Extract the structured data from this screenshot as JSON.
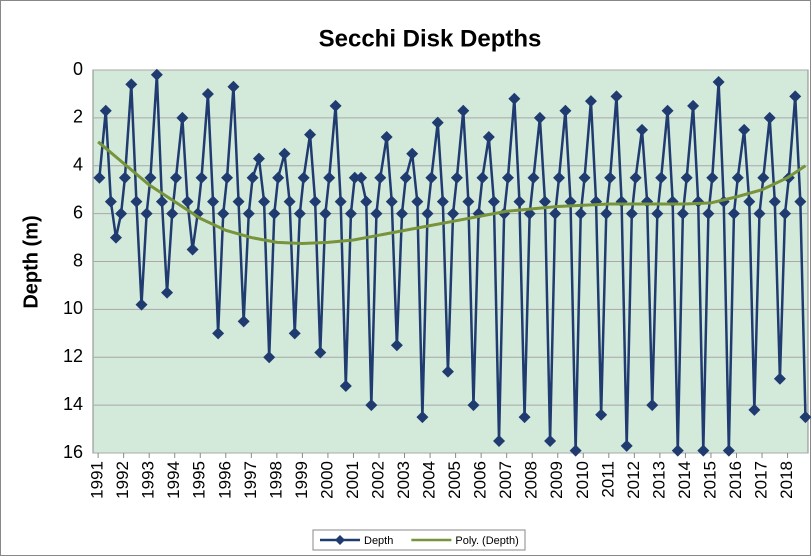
{
  "chart_data": {
    "type": "line",
    "title": "Secchi Disk Depths",
    "y_label": "Depth (m)",
    "xlim": [
      1990.8,
      2018.8
    ],
    "ylim": [
      0,
      16
    ],
    "y_inverted": true,
    "grid": true,
    "legend": "bottom",
    "xticks": [
      1991,
      1992,
      1993,
      1994,
      1995,
      1996,
      1997,
      1998,
      1999,
      2000,
      2001,
      2002,
      2003,
      2004,
      2005,
      2006,
      2007,
      2008,
      2009,
      2010,
      2011,
      2012,
      2013,
      2014,
      2015,
      2016,
      2017,
      2018
    ],
    "yticks": [
      0,
      2,
      4,
      6,
      8,
      10,
      12,
      14,
      16
    ],
    "series": [
      {
        "name": "Depth",
        "color": "#1f3b6f",
        "marker": "diamond",
        "x": [
          1991.05,
          1991.3,
          1991.5,
          1991.7,
          1991.9,
          1992.05,
          1992.3,
          1992.5,
          1992.7,
          1992.9,
          1993.05,
          1993.3,
          1993.5,
          1993.7,
          1993.9,
          1994.05,
          1994.3,
          1994.5,
          1994.7,
          1994.9,
          1995.05,
          1995.3,
          1995.5,
          1995.7,
          1995.9,
          1996.05,
          1996.3,
          1996.5,
          1996.7,
          1996.9,
          1997.05,
          1997.3,
          1997.5,
          1997.7,
          1997.9,
          1998.05,
          1998.3,
          1998.5,
          1998.7,
          1998.9,
          1999.05,
          1999.3,
          1999.5,
          1999.7,
          1999.9,
          2000.05,
          2000.3,
          2000.5,
          2000.7,
          2000.9,
          2001.05,
          2001.3,
          2001.5,
          2001.7,
          2001.9,
          2002.05,
          2002.3,
          2002.5,
          2002.7,
          2002.9,
          2003.05,
          2003.3,
          2003.5,
          2003.7,
          2003.9,
          2004.05,
          2004.3,
          2004.5,
          2004.7,
          2004.9,
          2005.05,
          2005.3,
          2005.5,
          2005.7,
          2005.9,
          2006.05,
          2006.3,
          2006.5,
          2006.7,
          2006.9,
          2007.05,
          2007.3,
          2007.5,
          2007.7,
          2007.9,
          2008.05,
          2008.3,
          2008.5,
          2008.7,
          2008.9,
          2009.05,
          2009.3,
          2009.5,
          2009.7,
          2009.9,
          2010.05,
          2010.3,
          2010.5,
          2010.7,
          2010.9,
          2011.05,
          2011.3,
          2011.5,
          2011.7,
          2011.9,
          2012.05,
          2012.3,
          2012.5,
          2012.7,
          2012.9,
          2013.05,
          2013.3,
          2013.5,
          2013.7,
          2013.9,
          2014.05,
          2014.3,
          2014.5,
          2014.7,
          2014.9,
          2015.05,
          2015.3,
          2015.5,
          2015.7,
          2015.9,
          2016.05,
          2016.3,
          2016.5,
          2016.7,
          2016.9,
          2017.05,
          2017.3,
          2017.5,
          2017.7,
          2017.9,
          2018.05,
          2018.3,
          2018.5,
          2018.7
        ],
        "values": [
          4.5,
          1.7,
          5.5,
          7.0,
          6,
          4.5,
          0.6,
          5.5,
          9.8,
          6,
          4.5,
          0.2,
          5.5,
          9.3,
          6,
          4.5,
          2,
          5.5,
          7.5,
          6,
          4.5,
          1,
          5.5,
          11,
          6,
          4.5,
          0.7,
          5.5,
          10.5,
          6,
          4.5,
          3.7,
          5.5,
          12,
          6,
          4.5,
          3.5,
          5.5,
          11,
          6,
          4.5,
          2.7,
          5.5,
          11.8,
          6,
          4.5,
          1.5,
          5.5,
          13.2,
          6,
          4.5,
          4.5,
          5.5,
          14,
          6,
          4.5,
          2.8,
          5.5,
          11.5,
          6,
          4.5,
          3.5,
          5.5,
          14.5,
          6,
          4.5,
          2.2,
          5.5,
          12.6,
          6,
          4.5,
          1.7,
          5.5,
          14,
          6,
          4.5,
          2.8,
          5.5,
          15.5,
          6,
          4.5,
          1.2,
          5.5,
          14.5,
          6,
          4.5,
          2,
          5.5,
          15.5,
          6,
          4.5,
          1.7,
          5.5,
          15.9,
          6,
          4.5,
          1.3,
          5.5,
          14.4,
          6,
          4.5,
          1.1,
          5.5,
          15.7,
          6,
          4.5,
          2.5,
          5.5,
          14,
          6,
          4.5,
          1.7,
          5.5,
          15.9,
          6,
          4.5,
          1.5,
          5.5,
          15.9,
          6,
          4.5,
          0.5,
          5.5,
          15.9,
          6,
          4.5,
          2.5,
          5.5,
          14.2,
          6,
          4.5,
          2,
          5.5,
          12.9,
          6,
          4.5,
          1.1,
          5.5,
          14.5
        ]
      },
      {
        "name": "Poly. (Depth)",
        "color": "#77933c",
        "x": [
          1991,
          1992,
          1993,
          1994,
          1995,
          1996,
          1997,
          1998,
          1999,
          2000,
          2001,
          2002,
          2003,
          2004,
          2005,
          2006,
          2007,
          2008,
          2009,
          2010,
          2011,
          2012,
          2013,
          2014,
          2015,
          2016,
          2017,
          2018,
          2018.7
        ],
        "values": [
          3.0,
          3.9,
          4.8,
          5.5,
          6.2,
          6.7,
          7.0,
          7.2,
          7.25,
          7.2,
          7.1,
          6.9,
          6.7,
          6.5,
          6.3,
          6.1,
          5.9,
          5.8,
          5.7,
          5.65,
          5.6,
          5.6,
          5.6,
          5.6,
          5.55,
          5.3,
          5.0,
          4.5,
          4.0
        ]
      }
    ]
  }
}
